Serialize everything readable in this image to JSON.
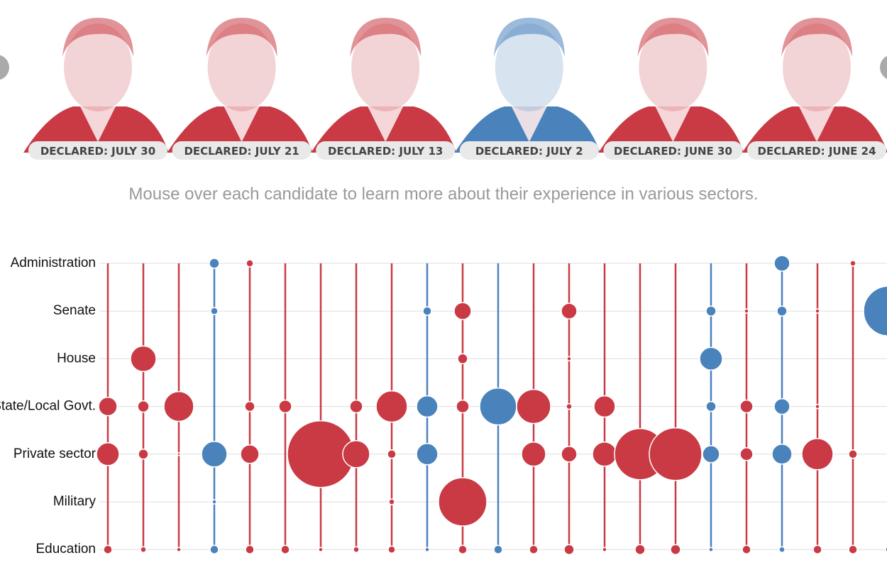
{
  "candidates": [
    {
      "declared": "DECLARED: JULY 30",
      "color": "#c93a44"
    },
    {
      "declared": "DECLARED: JULY 21",
      "color": "#c93a44"
    },
    {
      "declared": "DECLARED: JULY 13",
      "color": "#c93a44"
    },
    {
      "declared": "DECLARED: JULY 2",
      "color": "#4a82bb"
    },
    {
      "declared": "DECLARED: JUNE 30",
      "color": "#c93a44"
    },
    {
      "declared": "DECLARED: JUNE 24",
      "color": "#c93a44"
    }
  ],
  "instruction": "Mouse over each candidate to learn more about their experience in various sectors.",
  "chart_data": {
    "type": "bubble",
    "categories": [
      "Administration",
      "Senate",
      "House",
      "State/Local Govt.",
      "Private sector",
      "Military",
      "Education"
    ],
    "columns": [
      {
        "color": "#c93a44",
        "sizes": [
          null,
          null,
          null,
          13,
          16,
          null,
          6
        ]
      },
      {
        "color": "#c93a44",
        "sizes": [
          null,
          null,
          18,
          8,
          7,
          null,
          4
        ]
      },
      {
        "color": "#c93a44",
        "sizes": [
          null,
          null,
          null,
          21,
          2,
          null,
          3
        ]
      },
      {
        "color": "#4a82bb",
        "sizes": [
          7,
          5,
          null,
          null,
          18,
          3,
          6
        ]
      },
      {
        "color": "#c93a44",
        "sizes": [
          5,
          null,
          null,
          7,
          13,
          null,
          6
        ]
      },
      {
        "color": "#c93a44",
        "sizes": [
          null,
          null,
          null,
          9,
          null,
          null,
          6
        ]
      },
      {
        "color": "#c93a44",
        "sizes": [
          null,
          null,
          null,
          null,
          47,
          null,
          3
        ]
      },
      {
        "color": "#c93a44",
        "sizes": [
          null,
          null,
          null,
          9,
          19,
          null,
          4
        ]
      },
      {
        "color": "#c93a44",
        "sizes": [
          null,
          null,
          null,
          22,
          6,
          4,
          5
        ]
      },
      {
        "color": "#4a82bb",
        "sizes": [
          null,
          6,
          null,
          15,
          15,
          null,
          3
        ]
      },
      {
        "color": "#c93a44",
        "sizes": [
          null,
          12,
          7,
          9,
          null,
          34,
          6
        ]
      },
      {
        "color": "#4a82bb",
        "sizes": [
          null,
          null,
          null,
          26,
          null,
          null,
          6
        ]
      },
      {
        "color": "#c93a44",
        "sizes": [
          null,
          null,
          null,
          24,
          17,
          null,
          6
        ]
      },
      {
        "color": "#c93a44",
        "sizes": [
          null,
          11,
          3,
          4,
          11,
          null,
          7
        ]
      },
      {
        "color": "#c93a44",
        "sizes": [
          null,
          null,
          null,
          15,
          17,
          null,
          3
        ]
      },
      {
        "color": "#c93a44",
        "sizes": [
          null,
          null,
          null,
          null,
          36,
          null,
          7
        ]
      },
      {
        "color": "#c93a44",
        "sizes": [
          null,
          null,
          null,
          null,
          37,
          null,
          7
        ]
      },
      {
        "color": "#4a82bb",
        "sizes": [
          null,
          7,
          16,
          7,
          12,
          null,
          3
        ]
      },
      {
        "color": "#c93a44",
        "sizes": [
          null,
          3,
          null,
          9,
          9,
          null,
          6
        ]
      },
      {
        "color": "#4a82bb",
        "sizes": [
          11,
          7,
          null,
          11,
          14,
          null,
          4
        ]
      },
      {
        "color": "#c93a44",
        "sizes": [
          null,
          3,
          null,
          3,
          22,
          null,
          6
        ]
      },
      {
        "color": "#c93a44",
        "sizes": [
          4,
          null,
          null,
          null,
          6,
          null,
          6
        ]
      },
      {
        "color": "#4a82bb",
        "sizes": [
          3,
          35,
          null,
          null,
          2,
          null,
          4
        ]
      }
    ]
  }
}
